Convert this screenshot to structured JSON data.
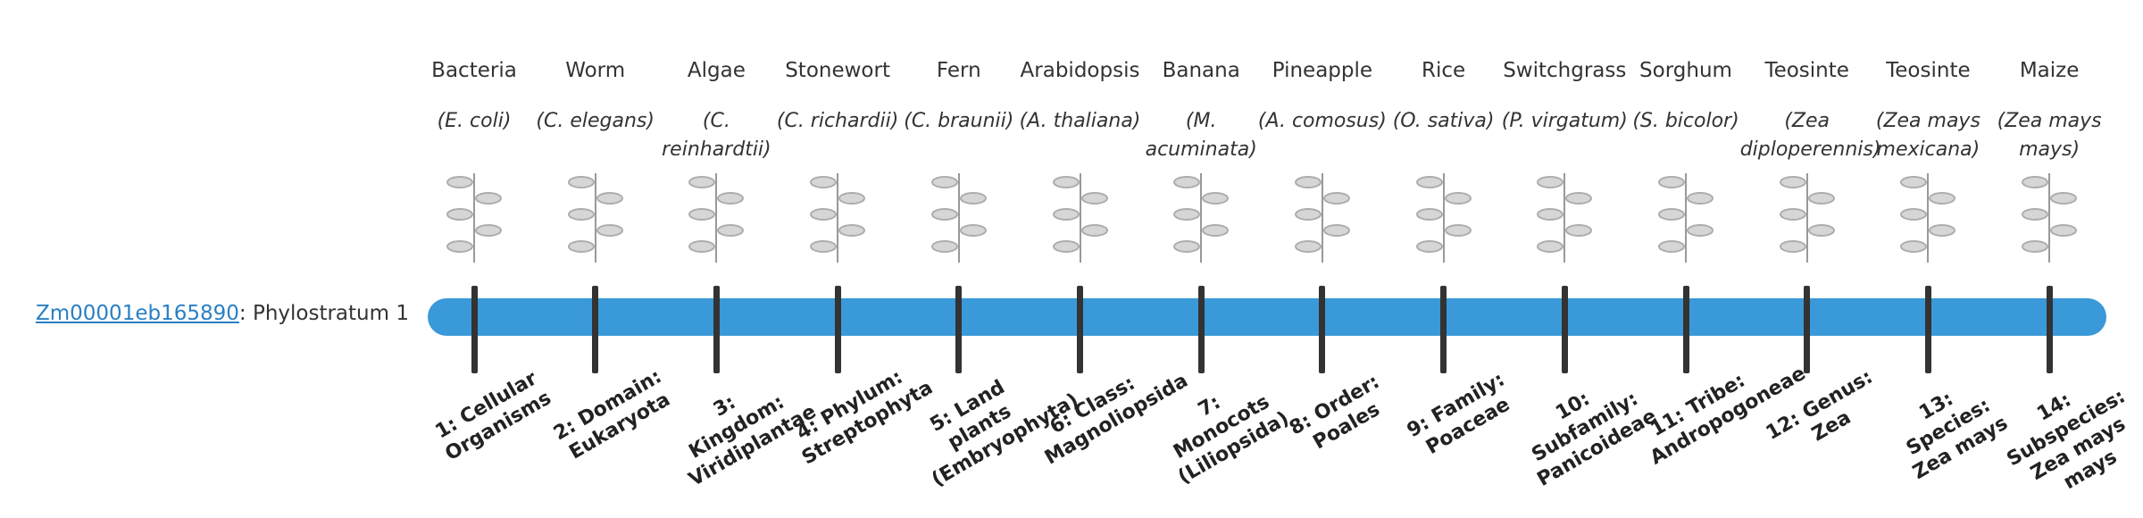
{
  "gene": {
    "id": "Zm00001eb165890",
    "suffix": ": Phylostratum 1"
  },
  "columns": [
    {
      "name": "Bacteria",
      "species": "(E. coli)",
      "stratum": "1: Cellular Organisms"
    },
    {
      "name": "Worm",
      "species": "(C. elegans)",
      "stratum": "2: Domain: Eukaryota"
    },
    {
      "name": "Algae",
      "species": "(C. reinhardtii)",
      "stratum": "3: Kingdom: Viridiplantae"
    },
    {
      "name": "Stonewort",
      "species": "(C. richardii)",
      "stratum": "4: Phylum: Streptophyta"
    },
    {
      "name": "Fern",
      "species": "(C. braunii)",
      "stratum": "5: Land plants (Embryophyta)"
    },
    {
      "name": "Arabidopsis",
      "species": "(A. thaliana)",
      "stratum": "6: Class: Magnoliopsida"
    },
    {
      "name": "Banana",
      "species": "(M. acuminata)",
      "stratum": "7: Monocots (Liliopsida)"
    },
    {
      "name": "Pineapple",
      "species": "(A. comosus)",
      "stratum": "8: Order: Poales"
    },
    {
      "name": "Rice",
      "species": "(O. sativa)",
      "stratum": "9: Family: Poaceae"
    },
    {
      "name": "Switchgrass",
      "species": "(P. virgatum)",
      "stratum": "10: Subfamily: Panicoideae"
    },
    {
      "name": "Sorghum",
      "species": "(S. bicolor)",
      "stratum": "11: Tribe: Andropogoneae"
    },
    {
      "name": "Teosinte",
      "species": "(Zea diploperennis)",
      "stratum": "12: Genus: Zea"
    },
    {
      "name": "Teosinte",
      "species": "(Zea mays mexicana)",
      "stratum": "13: Species: Zea mays"
    },
    {
      "name": "Maize",
      "species": "(Zea mays mays)",
      "stratum": "14: Subspecies: Zea mays mays"
    }
  ]
}
